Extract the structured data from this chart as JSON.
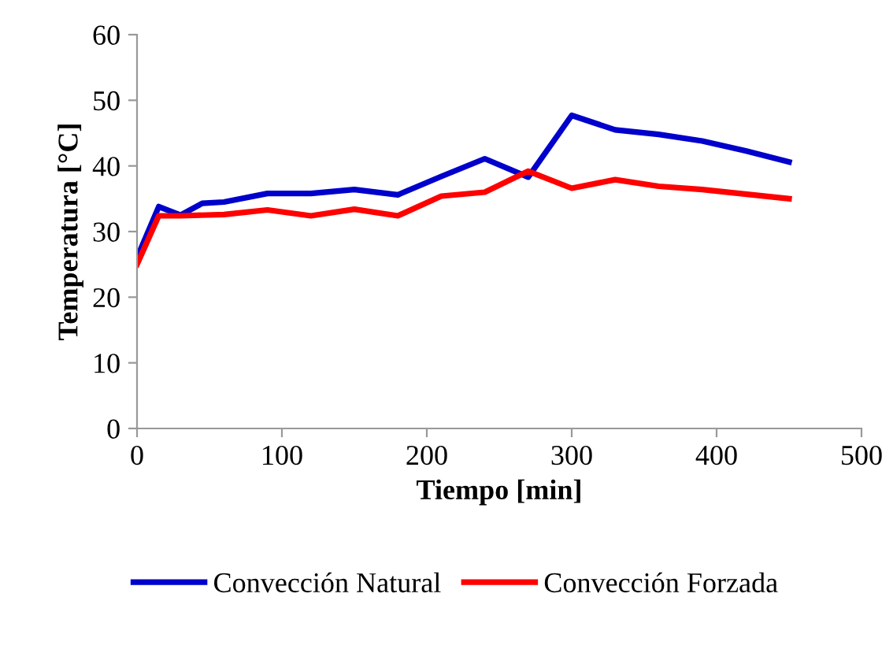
{
  "chart_data": {
    "type": "line",
    "xlabel": "Tiempo [min]",
    "ylabel": "Temperatura [°C]",
    "xlim": [
      0,
      500
    ],
    "xticks": [
      0,
      100,
      200,
      300,
      400,
      500
    ],
    "ylim": [
      0,
      60
    ],
    "yticks": [
      0,
      10,
      20,
      30,
      40,
      50,
      60
    ],
    "grid": false,
    "legend": "bottom",
    "marker": "none",
    "line_style": "solid",
    "series": [
      {
        "name": "Convección Natural",
        "color": "#0000cc",
        "x": [
          0,
          15,
          30,
          45,
          60,
          90,
          120,
          150,
          180,
          210,
          240,
          270,
          300,
          330,
          360,
          390,
          420,
          450
        ],
        "values": [
          26,
          33.8,
          32.5,
          34.3,
          34.5,
          35.8,
          35.8,
          36.4,
          35.6,
          38.4,
          41.1,
          38.3,
          47.7,
          45.5,
          44.8,
          43.8,
          42.3,
          40.6
        ]
      },
      {
        "name": "Convección Forzada",
        "color": "#ff0000",
        "x": [
          0,
          15,
          30,
          60,
          90,
          120,
          150,
          180,
          210,
          240,
          270,
          300,
          330,
          360,
          390,
          450
        ],
        "values": [
          25,
          32.4,
          32.4,
          32.6,
          33.3,
          32.4,
          33.4,
          32.4,
          35.4,
          36.0,
          39.2,
          36.6,
          37.9,
          36.9,
          36.4,
          35.0
        ]
      }
    ]
  }
}
